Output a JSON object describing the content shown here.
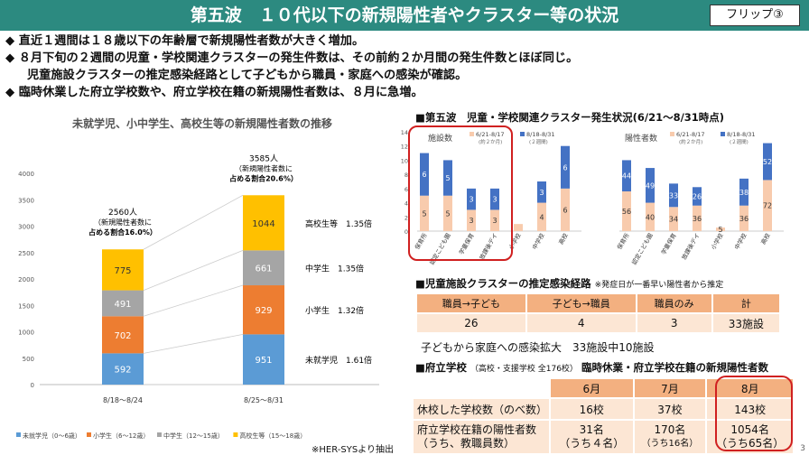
{
  "header": {
    "title": "第五波　１０代以下の新規陽性者やクラスター等の状況",
    "flip": "フリップ③"
  },
  "bullets": [
    "◆ 直近１週間は１８歳以下の年齢層で新規陽性者数が大きく増加。",
    "◆ ８月下旬の２週間の児童・学校関連クラスターの発生件数は、その前約２か月間の発生件数とほぼ同じ。",
    "児童施設クラスターの推定感染経路として子どもから職員・家庭への感染が確認。",
    "◆ 臨時休業した府立学校数や、府立学校在籍の新規陽性者数は、８月に急増。"
  ],
  "colors": {
    "mishuugaku": "#5b9bd5",
    "shougaku": "#ed7d31",
    "chuugaku": "#a5a5a5",
    "koukou": "#ffc000",
    "first_period": "#f8cbad",
    "second_period": "#4472c4"
  },
  "chart_data": [
    {
      "type": "bar",
      "title": "未就学児、小中学生、高校生等の新規陽性者数の推移",
      "categories": [
        "8/18～8/24",
        "8/25～8/31"
      ],
      "ylim": [
        0,
        4000
      ],
      "yticks": [
        "0",
        "500",
        "1000",
        "1500",
        "2000",
        "2500",
        "3000",
        "3500",
        "4000"
      ],
      "series": [
        {
          "name": "未就学児（0～6歳）",
          "values": [
            592,
            951
          ]
        },
        {
          "name": "小学生（6～12歳）",
          "values": [
            702,
            929
          ]
        },
        {
          "name": "中学生（12～15歳）",
          "values": [
            491,
            661
          ]
        },
        {
          "name": "高校生等（15～18歳）",
          "values": [
            775,
            1044
          ]
        }
      ],
      "totals": [
        [
          "2560人",
          "（新規陽性者数に",
          "占める割合16.0%）"
        ],
        [
          "3585人",
          "（新規陽性者数に",
          "占める割合20.6%）"
        ]
      ],
      "ratios": [
        "高校生等　1.35倍",
        "中学生　1.35倍",
        "小学生　1.32倍",
        "未就学児　1.61倍"
      ],
      "source": "※HER-SYSより抽出"
    },
    {
      "type": "bar",
      "title": "■第五波　児童・学校関連クラスター発生状況(6/21～8/31時点)",
      "subtitle": "施設数",
      "legend": [
        "6/21-8/17",
        "8/18-8/31"
      ],
      "legend_sub": [
        "(約２か月)",
        "(２週間)"
      ],
      "categories": [
        "保育所",
        "認定こども園",
        "学童保育",
        "放課後デイ",
        "小学校",
        "中学校",
        "高校"
      ],
      "ylim": [
        0,
        14
      ],
      "yticks": [
        "0",
        "2",
        "4",
        "6",
        "8",
        "10",
        "12",
        "14"
      ],
      "series": [
        {
          "name": "6/21-8/17",
          "values": [
            5,
            5,
            3,
            3,
            1,
            4,
            6
          ]
        },
        {
          "name": "8/18-8/31",
          "values": [
            6,
            5,
            3,
            3,
            0,
            3,
            6
          ]
        }
      ]
    },
    {
      "type": "bar",
      "subtitle": "陽性者数",
      "legend": [
        "6/21-8/17",
        "8/18-8/31"
      ],
      "legend_sub": [
        "(約２か月)",
        "(２週間)"
      ],
      "categories": [
        "保育所",
        "認定こども園",
        "学童保育",
        "放課後デイ",
        "小学校",
        "中学校",
        "高校"
      ],
      "ylim": [
        0,
        140
      ],
      "series": [
        {
          "name": "6/21-8/17",
          "values": [
            56,
            40,
            34,
            36,
            5,
            36,
            72
          ]
        },
        {
          "name": "8/18-8/31",
          "values": [
            44,
            49,
            33,
            26,
            0,
            38,
            52
          ]
        }
      ]
    }
  ],
  "route": {
    "heading": "■児童施設クラスターの推定感染経路",
    "note": "※発症日が一番早い陽性者から推定",
    "headers": [
      "職員→子ども",
      "子ども→職員",
      "職員のみ",
      "計"
    ],
    "values": [
      "26",
      "4",
      "3",
      "33施設"
    ],
    "family": "子どもから家庭への感染拡大　33施設中10施設"
  },
  "school": {
    "heading_a": "■府立学校",
    "heading_small": "（高校・支援学校 全176校）",
    "heading_b": "臨時休業・府立学校在籍の新規陽性者数",
    "months": [
      "6月",
      "7月",
      "8月"
    ],
    "rows": [
      {
        "label": "休校した学校数（のべ数）",
        "values": [
          "16校",
          "37校",
          "143校"
        ]
      },
      {
        "label": "府立学校在籍の陽性者数",
        "label2": "（うち、教職員数）",
        "values": [
          "31名",
          "170名",
          "1054名"
        ],
        "sub": [
          "（うち４名）",
          "（うち16名）",
          "（うち65名）"
        ]
      }
    ]
  },
  "page_number": "3"
}
